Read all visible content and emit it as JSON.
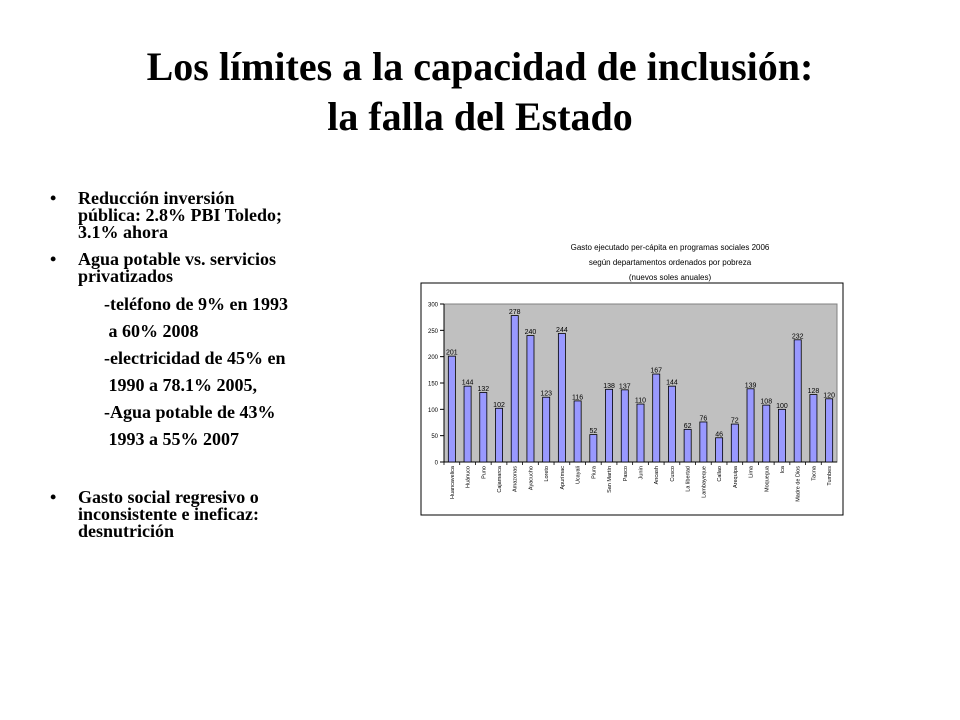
{
  "slide": {
    "title_line1": "Los límites a la capacidad de inclusión:",
    "title_line2": "la falla del Estado",
    "bullet_glyph": "•",
    "bullets": {
      "b1_lines": [
        "Reducción inversión",
        "pública: 2.8% PBI Toledo;",
        "3.1% ahora"
      ],
      "b2_lines": [
        "Agua potable vs. servicios",
        "privatizados"
      ],
      "sub_lines": [
        "-teléfono de 9% en 1993",
        " a 60% 2008",
        "-electricidad de 45% en",
        " 1990 a 78.1% 2005,",
        "-Agua potable de 43%",
        " 1993 a 55% 2007"
      ],
      "b3_lines": [
        "Gasto social regresivo o",
        "inconsistente e ineficaz:",
        "desnutrición"
      ]
    }
  },
  "chart_data": {
    "type": "bar",
    "title_lines": [
      "Gasto ejecutado per-cápita en programas sociales 2006",
      "según departamentos ordenados por pobreza",
      "(nuevos soles anuales)"
    ],
    "categories": [
      "Huancavelica",
      "Huánuco",
      "Puno",
      "Cajamarca",
      "Amazonas",
      "Ayacucho",
      "Loreto",
      "Apurímac",
      "Ucayali",
      "Piura",
      "San Martín",
      "Pasco",
      "Junín",
      "Ancash",
      "Cusco",
      "La libertad",
      "Lambayeque",
      "Callao",
      "Arequipa",
      "Lima",
      "Moquegua",
      "Ica",
      "Madre de Dios",
      "Tacna",
      "Tumbes"
    ],
    "values": [
      201,
      144,
      132,
      102,
      278,
      240,
      123,
      244,
      116,
      52,
      138,
      137,
      110,
      167,
      144,
      62,
      76,
      46,
      72,
      139,
      108,
      100,
      232,
      128,
      120
    ],
    "ylim": [
      0,
      300
    ],
    "yticks": [
      0,
      50,
      100,
      150,
      200,
      250,
      300
    ],
    "bar_color": "#9999ff",
    "grid": false,
    "legend": false
  }
}
